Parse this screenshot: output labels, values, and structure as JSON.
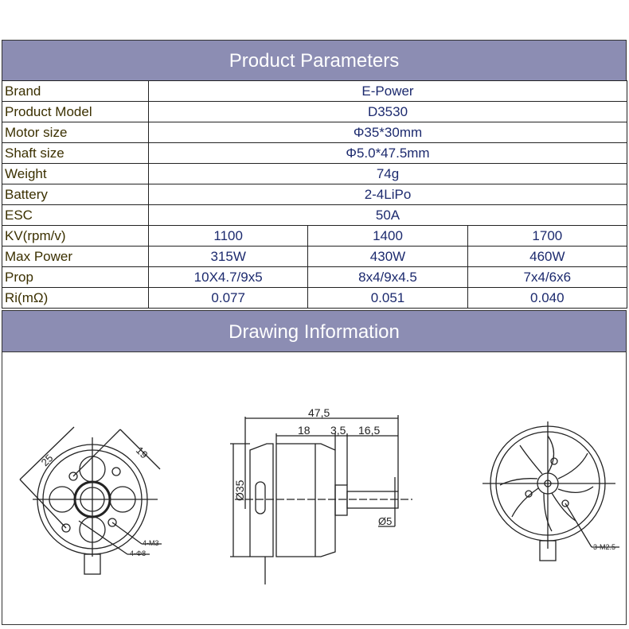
{
  "product_header": "Product Parameters",
  "rows_single": [
    {
      "label": "Brand",
      "value": "E-Power"
    },
    {
      "label": "Product Model",
      "value": "D3530"
    },
    {
      "label": "Motor size",
      "value": "Φ35*30mm"
    },
    {
      "label": "Shaft size",
      "value": "Φ5.0*47.5mm"
    },
    {
      "label": "Weight",
      "value": "74g"
    },
    {
      "label": "Battery",
      "value": "2-4LiPo"
    },
    {
      "label": "ESC",
      "value": "50A"
    }
  ],
  "rows_multi": [
    {
      "label": "KV(rpm/v)",
      "values": [
        "1100",
        "1400",
        "1700"
      ]
    },
    {
      "label": "Max Power",
      "values": [
        "315W",
        "430W",
        "460W"
      ]
    },
    {
      "label": "Prop",
      "values": [
        "10X4.7/9x5",
        "8x4/9x4.5",
        "7x4/6x6"
      ]
    },
    {
      "label": "Ri(mΩ)",
      "values": [
        "0.077",
        "0.051",
        "0.040"
      ]
    }
  ],
  "drawing_header": "Drawing Information",
  "drawing": {
    "front": {
      "dim_a": "25",
      "dim_b": "19",
      "note_1": "4-M3",
      "note_2": "4-Φ8"
    },
    "side": {
      "total": "47,5",
      "body": "18",
      "step": "3,5",
      "shaft": "16,5",
      "diameter": "Ø35",
      "shaft_dia": "Ø5"
    },
    "rear": {
      "note": "3-M2.5"
    }
  }
}
